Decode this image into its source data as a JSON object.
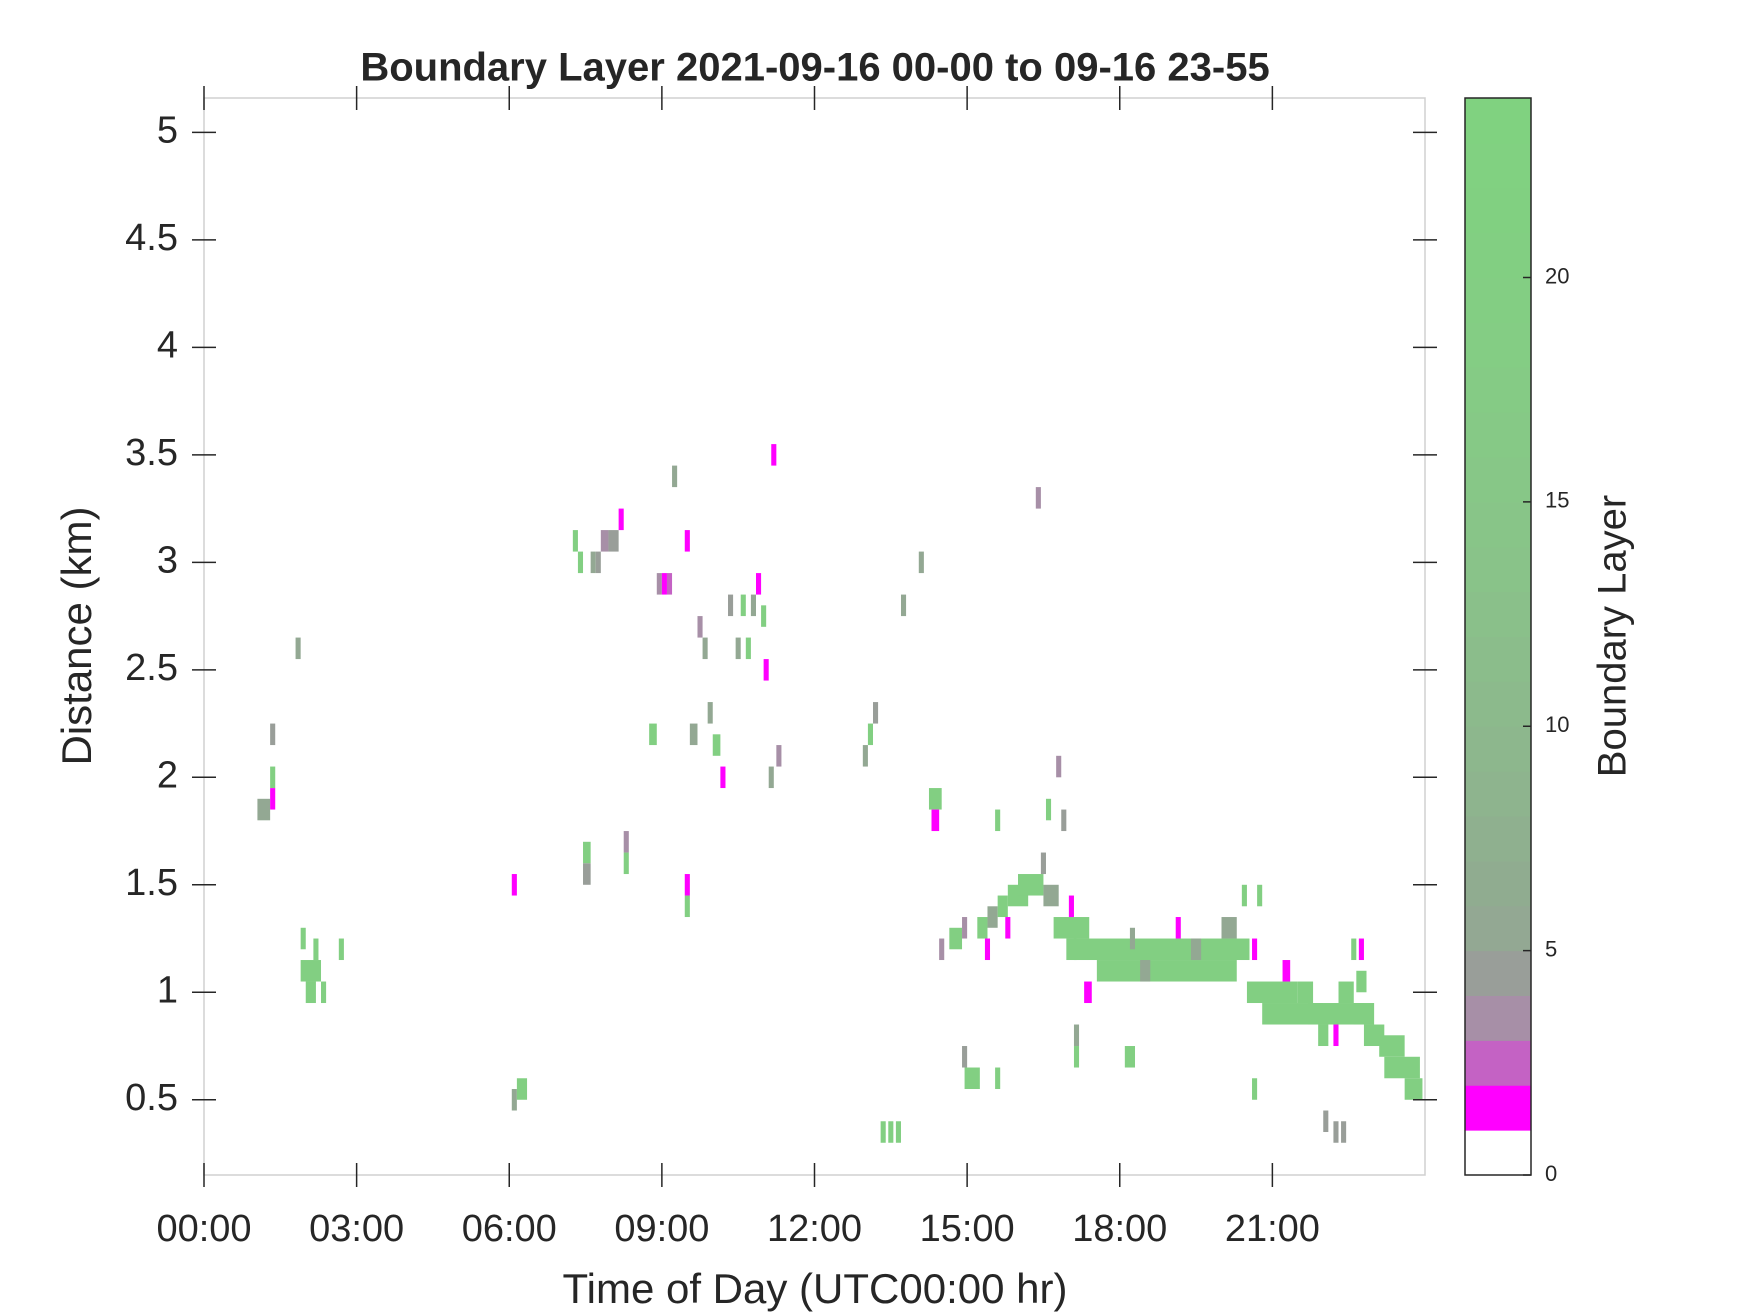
{
  "chart_data": {
    "type": "heatmap",
    "title": "Boundary Layer 2021-09-16 00-00 to 09-16 23-55",
    "xlabel": "Time of Day (UTC00:00 hr)",
    "ylabel": "Distance (km)",
    "colorbar_label": "Boundary Layer",
    "xlim": [
      0,
      24
    ],
    "xticks": [
      {
        "value": 0,
        "label": "00:00"
      },
      {
        "value": 3,
        "label": "03:00"
      },
      {
        "value": 6,
        "label": "06:00"
      },
      {
        "value": 9,
        "label": "09:00"
      },
      {
        "value": 12,
        "label": "12:00"
      },
      {
        "value": 15,
        "label": "15:00"
      },
      {
        "value": 18,
        "label": "18:00"
      },
      {
        "value": 21,
        "label": "21:00"
      }
    ],
    "ylim": [
      0.15,
      5.16
    ],
    "yticks": [
      0.5,
      1,
      1.5,
      2,
      2.5,
      3,
      3.5,
      4,
      4.5,
      5
    ],
    "clim": [
      0,
      24
    ],
    "cticks": [
      0,
      5,
      10,
      15,
      20
    ],
    "colormap": [
      "#ffffff",
      "#ff00ff",
      "#c462c4",
      "#a78fa7",
      "#999e99",
      "#93a893",
      "#90ac90",
      "#8fb08f",
      "#8eb48e",
      "#8db78d",
      "#8cba8c",
      "#8bbd8b",
      "#8ac08a",
      "#89c389",
      "#88c588",
      "#87c787",
      "#86c986",
      "#85cb85",
      "#84cd84",
      "#83ce83",
      "#82cf82",
      "#81d081",
      "#81d181",
      "#80d280"
    ],
    "cells": [
      {
        "x0": 1.05,
        "x1": 1.3,
        "y": 1.85,
        "value": 5
      },
      {
        "x0": 1.3,
        "x1": 1.4,
        "y": 1.9,
        "value": 1
      },
      {
        "x0": 1.3,
        "x1": 1.4,
        "y": 2.0,
        "value": 20
      },
      {
        "x0": 1.3,
        "x1": 1.4,
        "y": 2.2,
        "value": 4
      },
      {
        "x0": 1.8,
        "x1": 1.9,
        "y": 2.6,
        "value": 5
      },
      {
        "x0": 1.9,
        "x1": 2.0,
        "y": 1.25,
        "value": 20
      },
      {
        "x0": 1.9,
        "x1": 2.3,
        "y": 1.1,
        "value": 20
      },
      {
        "x0": 2.0,
        "x1": 2.2,
        "y": 1.0,
        "value": 20
      },
      {
        "x0": 2.3,
        "x1": 2.4,
        "y": 1.0,
        "value": 20
      },
      {
        "x0": 2.15,
        "x1": 2.25,
        "y": 1.2,
        "value": 20
      },
      {
        "x0": 2.65,
        "x1": 2.75,
        "y": 1.2,
        "value": 20
      },
      {
        "x0": 6.05,
        "x1": 6.15,
        "y": 1.5,
        "value": 1
      },
      {
        "x0": 6.05,
        "x1": 6.15,
        "y": 0.5,
        "value": 5
      },
      {
        "x0": 6.15,
        "x1": 6.35,
        "y": 0.55,
        "value": 20
      },
      {
        "x0": 7.25,
        "x1": 7.35,
        "y": 3.1,
        "value": 20
      },
      {
        "x0": 7.35,
        "x1": 7.45,
        "y": 3.0,
        "value": 20
      },
      {
        "x0": 7.45,
        "x1": 7.6,
        "y": 1.65,
        "value": 20
      },
      {
        "x0": 7.45,
        "x1": 7.6,
        "y": 1.55,
        "value": 4
      },
      {
        "x0": 7.6,
        "x1": 7.7,
        "y": 3.0,
        "value": 5
      },
      {
        "x0": 7.7,
        "x1": 7.8,
        "y": 3.0,
        "value": 4
      },
      {
        "x0": 7.8,
        "x1": 7.95,
        "y": 3.1,
        "value": 3
      },
      {
        "x0": 7.95,
        "x1": 8.15,
        "y": 3.1,
        "value": 4
      },
      {
        "x0": 8.15,
        "x1": 8.25,
        "y": 3.2,
        "value": 1
      },
      {
        "x0": 8.25,
        "x1": 8.35,
        "y": 1.7,
        "value": 3
      },
      {
        "x0": 8.25,
        "x1": 8.35,
        "y": 1.6,
        "value": 20
      },
      {
        "x0": 8.75,
        "x1": 8.9,
        "y": 2.2,
        "value": 20
      },
      {
        "x0": 8.9,
        "x1": 9.0,
        "y": 2.9,
        "value": 3
      },
      {
        "x0": 9.0,
        "x1": 9.1,
        "y": 2.9,
        "value": 1
      },
      {
        "x0": 9.1,
        "x1": 9.2,
        "y": 2.9,
        "value": 2
      },
      {
        "x0": 9.2,
        "x1": 9.3,
        "y": 3.4,
        "value": 5
      },
      {
        "x0": 9.45,
        "x1": 9.55,
        "y": 3.1,
        "value": 1
      },
      {
        "x0": 9.45,
        "x1": 9.55,
        "y": 1.5,
        "value": 1
      },
      {
        "x0": 9.45,
        "x1": 9.55,
        "y": 1.4,
        "value": 20
      },
      {
        "x0": 9.55,
        "x1": 9.7,
        "y": 2.2,
        "value": 5
      },
      {
        "x0": 9.7,
        "x1": 9.8,
        "y": 2.7,
        "value": 3
      },
      {
        "x0": 9.8,
        "x1": 9.9,
        "y": 2.6,
        "value": 5
      },
      {
        "x0": 9.9,
        "x1": 10.0,
        "y": 2.3,
        "value": 5
      },
      {
        "x0": 10.0,
        "x1": 10.15,
        "y": 2.15,
        "value": 20
      },
      {
        "x0": 10.15,
        "x1": 10.25,
        "y": 2.0,
        "value": 1
      },
      {
        "x0": 10.3,
        "x1": 10.4,
        "y": 2.8,
        "value": 4
      },
      {
        "x0": 10.45,
        "x1": 10.55,
        "y": 2.6,
        "value": 5
      },
      {
        "x0": 10.55,
        "x1": 10.65,
        "y": 2.8,
        "value": 20
      },
      {
        "x0": 10.65,
        "x1": 10.75,
        "y": 2.6,
        "value": 20
      },
      {
        "x0": 10.75,
        "x1": 10.85,
        "y": 2.8,
        "value": 5
      },
      {
        "x0": 10.85,
        "x1": 10.95,
        "y": 2.9,
        "value": 1
      },
      {
        "x0": 10.95,
        "x1": 11.05,
        "y": 2.75,
        "value": 20
      },
      {
        "x0": 11.0,
        "x1": 11.1,
        "y": 2.5,
        "value": 1
      },
      {
        "x0": 11.1,
        "x1": 11.2,
        "y": 2.0,
        "value": 5
      },
      {
        "x0": 11.15,
        "x1": 11.25,
        "y": 3.5,
        "value": 1
      },
      {
        "x0": 11.25,
        "x1": 11.35,
        "y": 2.1,
        "value": 3
      },
      {
        "x0": 12.95,
        "x1": 13.05,
        "y": 2.1,
        "value": 5
      },
      {
        "x0": 13.05,
        "x1": 13.15,
        "y": 2.2,
        "value": 20
      },
      {
        "x0": 13.15,
        "x1": 13.25,
        "y": 2.3,
        "value": 4
      },
      {
        "x0": 13.3,
        "x1": 13.4,
        "y": 0.35,
        "value": 20
      },
      {
        "x0": 13.45,
        "x1": 13.55,
        "y": 0.35,
        "value": 20
      },
      {
        "x0": 13.6,
        "x1": 13.7,
        "y": 0.35,
        "value": 20
      },
      {
        "x0": 13.7,
        "x1": 13.8,
        "y": 2.8,
        "value": 5
      },
      {
        "x0": 14.05,
        "x1": 14.15,
        "y": 3.0,
        "value": 5
      },
      {
        "x0": 14.25,
        "x1": 14.5,
        "y": 1.9,
        "value": 20
      },
      {
        "x0": 14.3,
        "x1": 14.45,
        "y": 1.8,
        "value": 1
      },
      {
        "x0": 14.45,
        "x1": 14.55,
        "y": 1.2,
        "value": 3
      },
      {
        "x0": 14.65,
        "x1": 14.9,
        "y": 1.25,
        "value": 20
      },
      {
        "x0": 14.9,
        "x1": 15.0,
        "y": 1.3,
        "value": 3
      },
      {
        "x0": 14.9,
        "x1": 15.0,
        "y": 0.7,
        "value": 4
      },
      {
        "x0": 14.95,
        "x1": 15.25,
        "y": 0.6,
        "value": 20
      },
      {
        "x0": 15.2,
        "x1": 15.4,
        "y": 1.3,
        "value": 20
      },
      {
        "x0": 15.35,
        "x1": 15.45,
        "y": 1.2,
        "value": 1
      },
      {
        "x0": 15.4,
        "x1": 15.6,
        "y": 1.35,
        "value": 5
      },
      {
        "x0": 15.55,
        "x1": 15.65,
        "y": 0.6,
        "value": 20
      },
      {
        "x0": 15.55,
        "x1": 15.65,
        "y": 1.8,
        "value": 20
      },
      {
        "x0": 15.6,
        "x1": 15.8,
        "y": 1.4,
        "value": 20
      },
      {
        "x0": 15.75,
        "x1": 15.85,
        "y": 1.3,
        "value": 1
      },
      {
        "x0": 15.8,
        "x1": 16.2,
        "y": 1.45,
        "value": 20
      },
      {
        "x0": 16.0,
        "x1": 16.5,
        "y": 1.5,
        "value": 20
      },
      {
        "x0": 16.35,
        "x1": 16.45,
        "y": 3.3,
        "value": 3
      },
      {
        "x0": 16.45,
        "x1": 16.55,
        "y": 1.6,
        "value": 4
      },
      {
        "x0": 16.5,
        "x1": 16.8,
        "y": 1.45,
        "value": 5
      },
      {
        "x0": 16.55,
        "x1": 16.65,
        "y": 1.85,
        "value": 20
      },
      {
        "x0": 16.7,
        "x1": 17.4,
        "y": 1.3,
        "value": 20
      },
      {
        "x0": 16.75,
        "x1": 16.85,
        "y": 2.05,
        "value": 3
      },
      {
        "x0": 16.85,
        "x1": 16.95,
        "y": 1.8,
        "value": 4
      },
      {
        "x0": 16.95,
        "x1": 17.15,
        "y": 1.2,
        "value": 20
      },
      {
        "x0": 17.0,
        "x1": 17.1,
        "y": 1.4,
        "value": 1
      },
      {
        "x0": 17.1,
        "x1": 20.55,
        "y": 1.2,
        "value": 20
      },
      {
        "x0": 17.55,
        "x1": 20.3,
        "y": 1.1,
        "value": 20
      },
      {
        "x0": 17.3,
        "x1": 17.45,
        "y": 1.0,
        "value": 1
      },
      {
        "x0": 17.1,
        "x1": 17.2,
        "y": 0.8,
        "value": 5
      },
      {
        "x0": 17.1,
        "x1": 17.2,
        "y": 0.7,
        "value": 20
      },
      {
        "x0": 18.4,
        "x1": 18.6,
        "y": 1.1,
        "value": 5
      },
      {
        "x0": 19.4,
        "x1": 19.6,
        "y": 1.2,
        "value": 5
      },
      {
        "x0": 20.0,
        "x1": 20.3,
        "y": 1.3,
        "value": 5
      },
      {
        "x0": 20.4,
        "x1": 20.5,
        "y": 1.45,
        "value": 20
      },
      {
        "x0": 20.7,
        "x1": 20.8,
        "y": 1.45,
        "value": 20
      },
      {
        "x0": 20.6,
        "x1": 20.7,
        "y": 1.2,
        "value": 1
      },
      {
        "x0": 18.1,
        "x1": 18.3,
        "y": 0.7,
        "value": 20
      },
      {
        "x0": 18.2,
        "x1": 18.3,
        "y": 1.25,
        "value": 5
      },
      {
        "x0": 19.1,
        "x1": 19.2,
        "y": 1.3,
        "value": 1
      },
      {
        "x0": 20.6,
        "x1": 20.7,
        "y": 0.55,
        "value": 20
      },
      {
        "x0": 20.5,
        "x1": 21.5,
        "y": 1.0,
        "value": 20
      },
      {
        "x0": 20.8,
        "x1": 22.0,
        "y": 0.9,
        "value": 20
      },
      {
        "x0": 21.2,
        "x1": 21.35,
        "y": 1.1,
        "value": 1
      },
      {
        "x0": 21.5,
        "x1": 21.8,
        "y": 1.0,
        "value": 20
      },
      {
        "x0": 21.7,
        "x1": 22.8,
        "y": 0.9,
        "value": 20
      },
      {
        "x0": 21.9,
        "x1": 22.1,
        "y": 0.8,
        "value": 20
      },
      {
        "x0": 22.2,
        "x1": 22.3,
        "y": 0.8,
        "value": 1
      },
      {
        "x0": 22.3,
        "x1": 22.6,
        "y": 1.0,
        "value": 20
      },
      {
        "x0": 22.55,
        "x1": 22.65,
        "y": 1.2,
        "value": 20
      },
      {
        "x0": 22.6,
        "x1": 23.0,
        "y": 0.9,
        "value": 20
      },
      {
        "x0": 22.7,
        "x1": 22.8,
        "y": 1.2,
        "value": 1
      },
      {
        "x0": 22.65,
        "x1": 22.85,
        "y": 1.05,
        "value": 20
      },
      {
        "x0": 22.8,
        "x1": 23.2,
        "y": 0.8,
        "value": 20
      },
      {
        "x0": 23.1,
        "x1": 23.6,
        "y": 0.75,
        "value": 20
      },
      {
        "x0": 23.2,
        "x1": 23.9,
        "y": 0.65,
        "value": 20
      },
      {
        "x0": 23.6,
        "x1": 23.95,
        "y": 0.55,
        "value": 20
      },
      {
        "x0": 22.0,
        "x1": 22.1,
        "y": 0.4,
        "value": 4
      },
      {
        "x0": 22.2,
        "x1": 22.3,
        "y": 0.35,
        "value": 4
      },
      {
        "x0": 22.35,
        "x1": 22.45,
        "y": 0.35,
        "value": 4
      }
    ]
  }
}
